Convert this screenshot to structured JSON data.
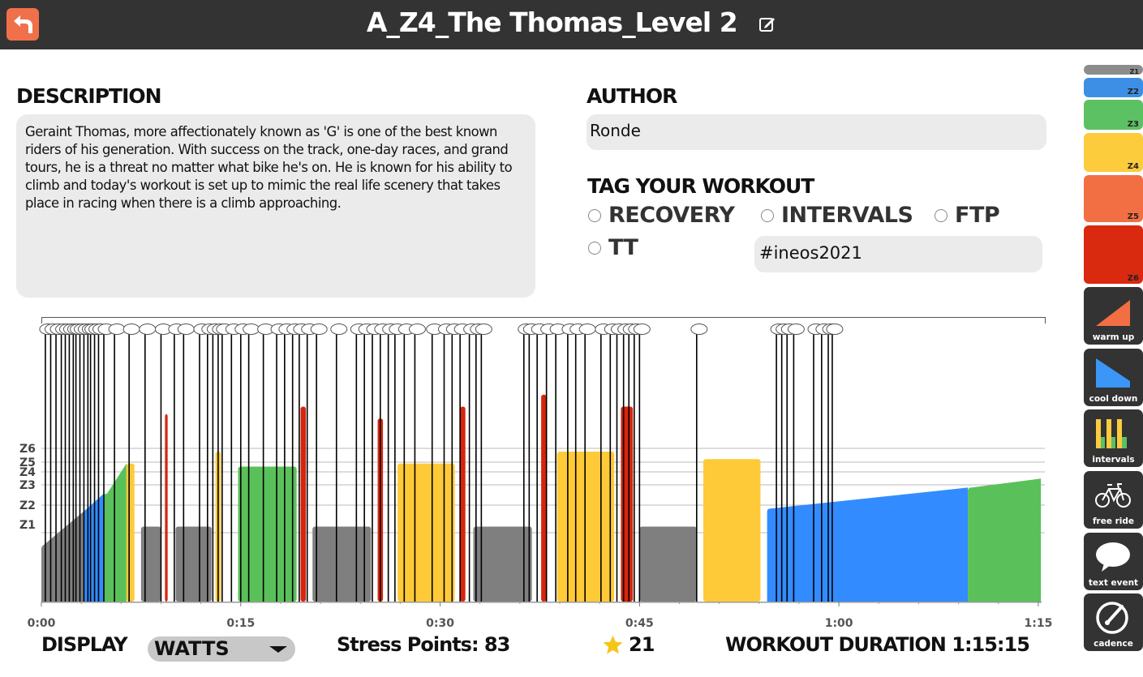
{
  "header": {
    "title": "A_Z4_The Thomas_Level 2"
  },
  "description": {
    "heading": "DESCRIPTION",
    "text": "Geraint Thomas, more affectionately known as 'G' is one of the best known riders of his generation. With success on the track, one-day races, and grand tours, he is a threat no matter what bike he's on. He is known for his ability to climb and today's workout is set up to mimic the real life scenery that takes place in racing when there is a climb approaching."
  },
  "author": {
    "heading": "AUTHOR",
    "value": "Ronde"
  },
  "tags": {
    "heading": "TAG YOUR WORKOUT",
    "options": [
      "RECOVERY",
      "INTERVALS",
      "FTP",
      "TT"
    ],
    "hashtag_value": "#ineos2021"
  },
  "footer": {
    "display_label": "DISPLAY",
    "display_value": "WATTS",
    "stress_points": "Stress Points: 83",
    "rating": "21",
    "duration": "WORKOUT DURATION 1:15:15"
  },
  "sidebar": {
    "zones": [
      "Z1",
      "Z2",
      "Z3",
      "Z4",
      "Z5",
      "Z6"
    ],
    "tools": [
      "warm up",
      "cool down",
      "intervals",
      "free ride",
      "text event",
      "cadence"
    ]
  },
  "colors": {
    "topbar": "#333333",
    "back": "#f0704a",
    "z1": "#7f7f7f",
    "z2": "#338cff",
    "z3": "#5ac15a",
    "z4": "#ffca38",
    "z5": "#f26d45",
    "z6": "#d6250d"
  },
  "chart_data": {
    "type": "bar",
    "x_unit": "minutes",
    "xlim": [
      0,
      75.25
    ],
    "x_ticks": [
      "0:00",
      "0:15",
      "0:30",
      "0:45",
      "1:00",
      "1:15"
    ],
    "y_unit": "FTP fraction",
    "zone_labels": [
      "Z1",
      "Z2",
      "Z3",
      "Z4",
      "Z5",
      "Z6"
    ],
    "segments": [
      {
        "start": 0,
        "end": 4.7,
        "power_from": 0.35,
        "power_to": 0.72,
        "kind": "ramp"
      },
      {
        "start": 4.7,
        "end": 6.4,
        "power_from": 0.72,
        "power_to": 0.92,
        "zone": "z3"
      },
      {
        "start": 6.4,
        "end": 7.0,
        "power": 0.92,
        "zone": "z4"
      },
      {
        "start": 7.5,
        "end": 9.0,
        "power": 0.5,
        "zone": "z1"
      },
      {
        "start": 9.3,
        "end": 9.5,
        "power": 1.25,
        "zone": "z6"
      },
      {
        "start": 10.1,
        "end": 12.8,
        "power": 0.5,
        "zone": "z1"
      },
      {
        "start": 13.1,
        "end": 13.5,
        "power": 1.0,
        "zone": "z4"
      },
      {
        "start": 14.8,
        "end": 19.2,
        "power": 0.9,
        "zone": "z3"
      },
      {
        "start": 19.5,
        "end": 19.9,
        "power": 1.3,
        "zone": "z6"
      },
      {
        "start": 20.4,
        "end": 24.8,
        "power": 0.5,
        "zone": "z1"
      },
      {
        "start": 25.3,
        "end": 25.7,
        "power": 1.22,
        "zone": "z6"
      },
      {
        "start": 26.8,
        "end": 31.1,
        "power": 0.92,
        "zone": "z4"
      },
      {
        "start": 31.5,
        "end": 31.9,
        "power": 1.3,
        "zone": "z6"
      },
      {
        "start": 32.5,
        "end": 36.9,
        "power": 0.5,
        "zone": "z1"
      },
      {
        "start": 37.6,
        "end": 38.0,
        "power": 1.38,
        "zone": "z6"
      },
      {
        "start": 38.8,
        "end": 43.1,
        "power": 1.0,
        "zone": "z4"
      },
      {
        "start": 43.6,
        "end": 44.5,
        "power": 1.3,
        "zone": "z6"
      },
      {
        "start": 45.0,
        "end": 49.3,
        "power": 0.5,
        "zone": "z1"
      },
      {
        "start": 49.8,
        "end": 54.1,
        "power": 0.95,
        "zone": "z4"
      },
      {
        "start": 54.6,
        "end": 69.7,
        "power_from": 0.62,
        "power_to": 0.76,
        "zone": "z2"
      },
      {
        "start": 69.7,
        "end": 75.2,
        "power_from": 0.76,
        "power_to": 0.82,
        "zone": "z3"
      }
    ],
    "text_events_minutes": [
      0.3,
      0.7,
      1.1,
      1.5,
      1.8,
      2.1,
      2.4,
      2.6,
      2.9,
      3.2,
      3.5,
      3.7,
      4.0,
      4.3,
      4.7,
      5.5,
      6.6,
      7.8,
      9.0,
      10.0,
      10.7,
      11.9,
      12.5,
      12.9,
      13.3,
      13.6,
      14.3,
      15.0,
      15.6,
      16.7,
      17.7,
      18.3,
      18.9,
      19.4,
      20.0,
      20.7,
      22.2,
      23.7,
      24.3,
      24.9,
      25.5,
      26.1,
      26.6,
      27.3,
      28.1,
      29.4,
      30.3,
      30.9,
      31.5,
      32.2,
      32.7,
      33.1,
      36.3,
      36.7,
      37.3,
      38.0,
      38.7,
      39.6,
      40.2,
      40.9,
      42.1,
      42.8,
      43.3,
      43.8,
      44.2,
      44.6,
      45.0,
      49.3,
      55.3,
      55.7,
      56.1,
      56.6,
      58.1,
      58.7,
      59.2,
      59.5
    ]
  }
}
